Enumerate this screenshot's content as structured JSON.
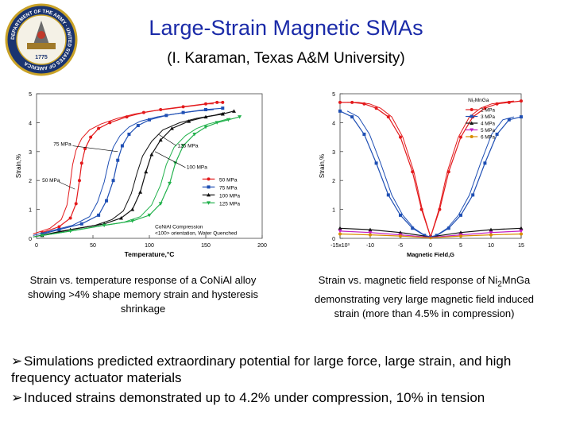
{
  "header": {
    "title": "Large-Strain Magnetic SMAs",
    "subtitle": "(I. Karaman, Texas A&M University)"
  },
  "seal_text": "DEPARTMENT OF THE ARMY · UNITED STATES OF AMERICA",
  "seal_year": "1775",
  "colors": {
    "title": "#1a2aa8",
    "red": "#e31a1c",
    "blue": "#1f4fb4",
    "black": "#111111",
    "green": "#22b14c",
    "magenta": "#c21fc2",
    "orange": "#d98c00"
  },
  "left_caption": "Strain vs. temperature response of a CoNiAl alloy showing >4% shape memory strain and hysteresis shrinkage",
  "right_caption": {
    "pre": "Strain vs. magnetic field response of Ni",
    "sub1": "2",
    "mid": "MnGa demonstrating very large magnetic field induced strain (more than 4.5% in compression)"
  },
  "bullets": [
    "Simulations predicted extraordinary potential for large force, large strain, and high frequency actuator materials",
    "Induced strains demonstrated up to 4.2% under compression, 10% in tension"
  ],
  "chart_data": [
    {
      "type": "line",
      "xlabel": "Temperature,°C",
      "ylabel": "Strain,%",
      "xlim": [
        0,
        200
      ],
      "ylim": [
        0,
        5
      ],
      "xticks": [
        "0",
        "50",
        "100",
        "150",
        "200"
      ],
      "yticks": [
        "0",
        "1",
        "2",
        "3",
        "4",
        "5"
      ],
      "legend_position": "bottom-right",
      "annotations": [
        "75 MPa",
        "50 MPa",
        "125 MPa",
        "100 MPa",
        "CoNiAl Compression",
        "<100> orientation, Water Quenched"
      ],
      "series": [
        {
          "name": "50 MPa",
          "color": "#e31a1c",
          "x": [
            5,
            20,
            30,
            35,
            38,
            40,
            43,
            48,
            55,
            65,
            80,
            95,
            110,
            130,
            150,
            160,
            165
          ],
          "y": [
            0.2,
            0.4,
            0.7,
            1.2,
            2.0,
            2.6,
            3.1,
            3.5,
            3.8,
            4.0,
            4.2,
            4.35,
            4.45,
            4.55,
            4.65,
            4.7,
            4.7
          ]
        },
        {
          "name": "75 MPa",
          "color": "#1f4fb4",
          "x": [
            5,
            20,
            40,
            55,
            62,
            68,
            72,
            76,
            82,
            90,
            100,
            115,
            130,
            150,
            165
          ],
          "y": [
            0.15,
            0.3,
            0.5,
            0.8,
            1.3,
            2.0,
            2.7,
            3.2,
            3.6,
            3.9,
            4.1,
            4.25,
            4.35,
            4.45,
            4.5
          ]
        },
        {
          "name": "100 MPa",
          "color": "#111111",
          "x": [
            5,
            30,
            60,
            75,
            85,
            92,
            97,
            102,
            110,
            120,
            135,
            150,
            165,
            175
          ],
          "y": [
            0.1,
            0.3,
            0.5,
            0.7,
            1.0,
            1.6,
            2.3,
            2.9,
            3.4,
            3.8,
            4.05,
            4.2,
            4.3,
            4.4
          ]
        },
        {
          "name": "125 MPa",
          "color": "#22b14c",
          "x": [
            5,
            30,
            60,
            85,
            100,
            110,
            118,
            123,
            130,
            140,
            150,
            160,
            170,
            180
          ],
          "y": [
            0.1,
            0.25,
            0.45,
            0.6,
            0.8,
            1.2,
            1.9,
            2.6,
            3.2,
            3.6,
            3.85,
            4.0,
            4.1,
            4.2
          ]
        }
      ]
    },
    {
      "type": "line",
      "xlabel": "Magnetic Field,G",
      "ylabel": "Strain,%",
      "xlim": [
        -15,
        15
      ],
      "ylim": [
        0,
        5
      ],
      "xticks": [
        "-15x10³",
        "-10",
        "-5",
        "0",
        "5",
        "10",
        "15"
      ],
      "yticks": [
        "0",
        "1",
        "2",
        "3",
        "4",
        "5"
      ],
      "legend_title": "Ni₂MnGa",
      "legend_position": "top-right",
      "series": [
        {
          "name": "2 MPa",
          "color": "#e31a1c",
          "x": [
            -15,
            -13,
            -11,
            -9,
            -7,
            -5,
            -3,
            -1.5,
            0,
            1.5,
            3,
            5,
            7,
            9,
            11,
            13,
            15
          ],
          "y": [
            4.7,
            4.7,
            4.65,
            4.5,
            4.2,
            3.5,
            2.3,
            1.0,
            0.05,
            1.0,
            2.3,
            3.5,
            4.2,
            4.5,
            4.65,
            4.7,
            4.75
          ]
        },
        {
          "name": "3 MPa",
          "color": "#1f4fb4",
          "x": [
            -15,
            -13,
            -11,
            -9,
            -7,
            -5,
            -3,
            -1,
            0,
            1,
            3,
            5,
            7,
            9,
            11,
            13,
            15
          ],
          "y": [
            4.4,
            4.2,
            3.6,
            2.6,
            1.5,
            0.8,
            0.35,
            0.1,
            0.05,
            0.1,
            0.35,
            0.8,
            1.5,
            2.6,
            3.6,
            4.1,
            4.2
          ]
        },
        {
          "name": "4 MPa",
          "color": "#111111",
          "x": [
            -15,
            -10,
            -5,
            0,
            5,
            10,
            15
          ],
          "y": [
            0.35,
            0.3,
            0.2,
            0.05,
            0.2,
            0.3,
            0.35
          ]
        },
        {
          "name": "5 MPa",
          "color": "#c21fc2",
          "x": [
            -15,
            -10,
            -5,
            0,
            5,
            10,
            15
          ],
          "y": [
            0.25,
            0.2,
            0.12,
            0.03,
            0.12,
            0.2,
            0.25
          ]
        },
        {
          "name": "6 MPa",
          "color": "#d98c00",
          "x": [
            -15,
            -10,
            -5,
            0,
            5,
            10,
            15
          ],
          "y": [
            0.15,
            0.12,
            0.08,
            0.02,
            0.08,
            0.12,
            0.15
          ]
        }
      ]
    }
  ]
}
